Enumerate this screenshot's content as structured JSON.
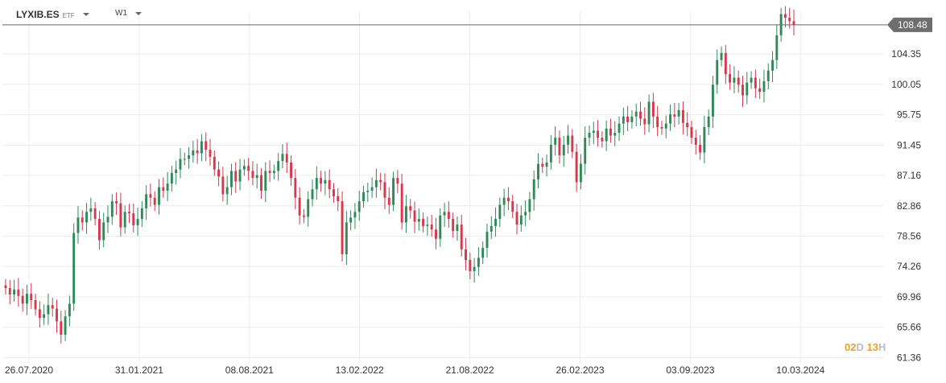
{
  "header": {
    "symbol": "LYXIB.ES",
    "asset_type": "ETF",
    "timeframe": "W1"
  },
  "countdown": {
    "days": "02",
    "days_unit": "D",
    "hours": "13",
    "hours_unit": "H"
  },
  "colors": {
    "up": "#2e8b57",
    "down": "#d9374a",
    "price_line": "#666666",
    "price_label_bg": "#6e6e6e",
    "grid": "#ececec",
    "axis_text": "#333333"
  },
  "chart_data": {
    "type": "candlestick",
    "ylim": [
      60.5,
      112.0
    ],
    "yticks": [
      "104.35",
      "100.05",
      "95.75",
      "91.45",
      "87.16",
      "82.86",
      "78.56",
      "74.26",
      "69.96",
      "65.66",
      "61.36"
    ],
    "xticks": [
      "26.07.2020",
      "31.01.2021",
      "08.08.2021",
      "13.02.2022",
      "21.08.2022",
      "26.02.2023",
      "03.09.2023",
      "10.03.2024"
    ],
    "last_price": 108.48,
    "last_price_label": "108.48",
    "grid": true,
    "close": [
      71.2,
      70.3,
      71.0,
      70.1,
      69.0,
      70.4,
      69.5,
      68.2,
      67.0,
      67.5,
      68.8,
      68.3,
      66.5,
      64.6,
      67.2,
      69.0,
      79.0,
      81.2,
      80.5,
      82.0,
      82.5,
      81.0,
      78.0,
      80.5,
      81.3,
      83.5,
      83.2,
      79.8,
      82.0,
      81.8,
      80.1,
      81.0,
      82.5,
      84.5,
      84.0,
      83.0,
      85.5,
      85.0,
      86.0,
      87.5,
      88.0,
      89.5,
      89.5,
      90.0,
      90.7,
      90.3,
      92.0,
      90.8,
      89.8,
      88.0,
      87.0,
      84.5,
      85.5,
      87.8,
      86.3,
      88.0,
      88.5,
      87.8,
      86.8,
      87.2,
      85.0,
      87.8,
      87.5,
      87.8,
      89.2,
      90.2,
      89.0,
      86.8,
      84.0,
      81.5,
      81.3,
      83.8,
      85.2,
      86.8,
      86.0,
      86.5,
      85.2,
      84.2,
      83.5,
      76.0,
      80.5,
      81.2,
      82.0,
      83.5,
      84.8,
      85.0,
      85.5,
      86.5,
      86.2,
      84.0,
      83.0,
      86.8,
      86.0,
      80.5,
      82.8,
      82.2,
      80.6,
      81.0,
      80.0,
      80.2,
      79.5,
      78.2,
      81.5,
      82.0,
      81.0,
      79.3,
      80.2,
      76.7,
      75.2,
      73.6,
      74.2,
      75.5,
      76.9,
      79.2,
      80.0,
      81.0,
      83.0,
      84.0,
      83.5,
      82.0,
      80.2,
      81.5,
      82.0,
      83.8,
      86.6,
      88.8,
      88.4,
      89.0,
      91.5,
      92.5,
      90.0,
      91.5,
      92.8,
      90.5,
      86.2,
      88.8,
      92.5,
      93.2,
      93.5,
      92.5,
      92.0,
      93.8,
      92.8,
      93.2,
      94.5,
      95.5,
      94.7,
      95.5,
      96.2,
      95.2,
      94.4,
      97.6,
      95.5,
      94.0,
      93.8,
      94.5,
      95.8,
      95.5,
      96.4,
      94.6,
      94.0,
      92.5,
      91.5,
      90.4,
      94.0,
      95.5,
      100.0,
      103.5,
      104.5,
      101.5,
      100.3,
      101.0,
      100.0,
      98.5,
      100.3,
      101.0,
      99.5,
      99.0,
      100.5,
      102.0,
      103.5,
      107.0,
      110.0,
      109.5,
      109.0,
      108.48
    ]
  }
}
